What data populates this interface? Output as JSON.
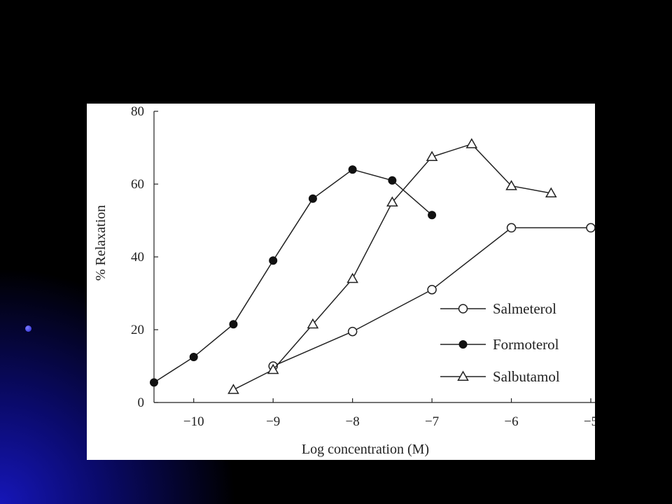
{
  "chart_data": {
    "type": "line",
    "xlabel": "Log concentration (M)",
    "ylabel": "% Relaxation",
    "xlim": [
      -10.5,
      -5
    ],
    "ylim": [
      0,
      80
    ],
    "xticks": [
      -10,
      -9,
      -8,
      -7,
      -6,
      -5
    ],
    "xtick_labels": [
      "−10",
      "−9",
      "−8",
      "−7",
      "−6",
      "−5"
    ],
    "yticks": [
      0,
      20,
      40,
      60,
      80
    ],
    "ytick_labels": [
      "0",
      "20",
      "40",
      "60",
      "80"
    ],
    "grid": false,
    "legend_position": "bottom-right",
    "series": [
      {
        "name": "Salmeterol",
        "marker": "open-circle",
        "x": [
          -9,
          -8,
          -7,
          -6,
          -5
        ],
        "y": [
          10,
          19.5,
          31,
          48,
          48
        ]
      },
      {
        "name": "Formoterol",
        "marker": "filled-circle",
        "x": [
          -10.5,
          -10,
          -9.5,
          -9,
          -8.5,
          -8,
          -7.5,
          -7
        ],
        "y": [
          5.5,
          12.5,
          21.5,
          39,
          56,
          64,
          61,
          51.5
        ]
      },
      {
        "name": "Salbutamol",
        "marker": "open-triangle",
        "x": [
          -9.5,
          -9,
          -8.5,
          -8,
          -7.5,
          -7,
          -6.5,
          -6,
          -5.5
        ],
        "y": [
          3.5,
          9,
          21.5,
          34,
          55,
          67.5,
          71,
          59.5,
          57.5
        ]
      }
    ]
  }
}
